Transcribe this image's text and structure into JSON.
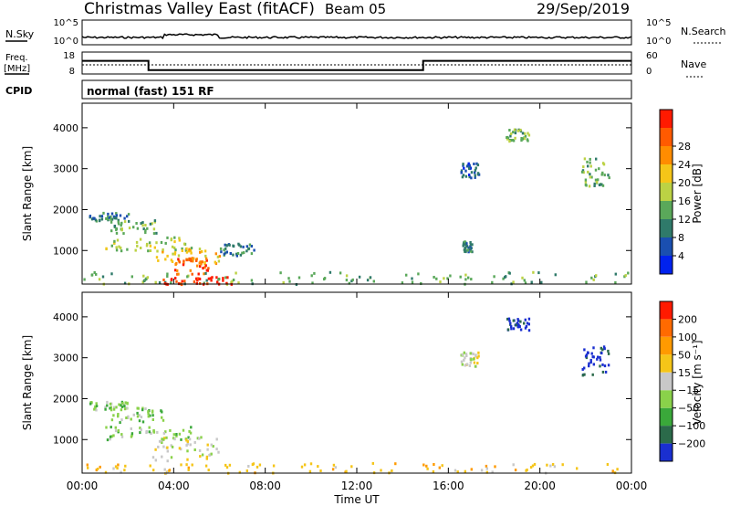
{
  "header": {
    "title": "Christmas Valley East (fitACF)",
    "beam": "Beam 05",
    "date": "29/Sep/2019"
  },
  "top_panels": {
    "nsky": {
      "label": "N.Sky",
      "ticks": [
        "10^5",
        "10^0"
      ],
      "right_label": "N.Search",
      "right_ticks": [
        "10^5",
        "10^0"
      ]
    },
    "freq": {
      "label_line1": "Freq.",
      "label_line2": "[MHz]",
      "ticks": [
        "18",
        "8"
      ],
      "right_label": "Nave",
      "right_ticks": [
        "60",
        "0"
      ]
    },
    "cpid": {
      "label": "CPID",
      "value": "normal (fast) 151 RF"
    }
  },
  "chart_data": [
    {
      "type": "heatmap",
      "panel": "power",
      "ylabel": "Slant Range [km]",
      "y_ticks": [
        1000,
        2000,
        3000,
        4000
      ],
      "ylim": [
        180,
        4600
      ],
      "colorbar": {
        "label": "Power [dB]",
        "ticks": [
          4,
          8,
          12,
          16,
          20,
          24,
          28
        ],
        "colors": [
          "#0022ee",
          "#1a4fb0",
          "#2f7a6a",
          "#5aa85a",
          "#bcd244",
          "#f5c518",
          "#ff8c00",
          "#ff5a00",
          "#ff1a00"
        ]
      },
      "regions": [
        {
          "t0": 0.3,
          "t1": 2.0,
          "r0": 1750,
          "r1": 1950,
          "level": 2
        },
        {
          "t0": 1.2,
          "t1": 3.2,
          "r0": 1450,
          "r1": 1800,
          "level": 3
        },
        {
          "t0": 1.0,
          "t1": 4.8,
          "r0": 1000,
          "r1": 1350,
          "level": 4
        },
        {
          "t0": 3.2,
          "t1": 6.0,
          "r0": 700,
          "r1": 1100,
          "level": 5
        },
        {
          "t0": 4.0,
          "t1": 5.5,
          "r0": 450,
          "r1": 850,
          "level": 7
        },
        {
          "t0": 6.0,
          "t1": 7.5,
          "r0": 900,
          "r1": 1200,
          "level": 2
        },
        {
          "t0": 0.0,
          "t1": 24.0,
          "r0": 200,
          "r1": 500,
          "level": 3
        },
        {
          "t0": 3.5,
          "t1": 6.5,
          "r0": 200,
          "r1": 380,
          "level": 8
        },
        {
          "t0": 16.5,
          "t1": 17.3,
          "r0": 2800,
          "r1": 3200,
          "level": 1
        },
        {
          "t0": 18.5,
          "t1": 19.5,
          "r0": 3700,
          "r1": 4000,
          "level": 3
        },
        {
          "t0": 21.8,
          "t1": 23.0,
          "r0": 2600,
          "r1": 3300,
          "level": 3
        },
        {
          "t0": 16.6,
          "t1": 17.0,
          "r0": 1000,
          "r1": 1250,
          "level": 2
        }
      ]
    },
    {
      "type": "heatmap",
      "panel": "velocity",
      "ylabel": "Slant Range [km]",
      "y_ticks": [
        1000,
        2000,
        3000,
        4000
      ],
      "ylim": [
        180,
        4600
      ],
      "colorbar": {
        "label": "Velocity [m s⁻¹]",
        "ticks": [
          "200",
          "100",
          "50",
          "15",
          "−15",
          "−50",
          "−100",
          "−200"
        ],
        "colors": [
          "#1a2fd0",
          "#2b6a4a",
          "#3aa83a",
          "#8ad24a",
          "#c8c8c8",
          "#f5c518",
          "#ff9a00",
          "#ff6a00",
          "#ff1a00"
        ]
      },
      "regions": [
        {
          "t0": 0.3,
          "t1": 2.0,
          "r0": 1750,
          "r1": 1950,
          "level": 3
        },
        {
          "t0": 1.2,
          "t1": 3.5,
          "r0": 1450,
          "r1": 1800,
          "level": 3
        },
        {
          "t0": 1.0,
          "t1": 4.8,
          "r0": 1000,
          "r1": 1350,
          "level": 3
        },
        {
          "t0": 3.0,
          "t1": 6.0,
          "r0": 500,
          "r1": 1100,
          "level": 4
        },
        {
          "t0": 0.0,
          "t1": 24.0,
          "r0": 200,
          "r1": 450,
          "level": 5
        },
        {
          "t0": 16.5,
          "t1": 17.3,
          "r0": 2800,
          "r1": 3200,
          "level": 4
        },
        {
          "t0": 18.5,
          "t1": 19.5,
          "r0": 3700,
          "r1": 4000,
          "level": 0
        },
        {
          "t0": 21.8,
          "t1": 23.0,
          "r0": 2600,
          "r1": 3300,
          "level": 0
        }
      ]
    }
  ],
  "x_axis": {
    "label": "Time UT",
    "ticks": [
      "00:00",
      "04:00",
      "08:00",
      "12:00",
      "16:00",
      "20:00",
      "00:00"
    ],
    "range_hours": [
      0,
      24
    ]
  },
  "freq_series": {
    "hours": [
      0,
      2.9,
      2.9,
      14.9,
      14.9,
      24
    ],
    "mhz": [
      14,
      14,
      9.8,
      9.8,
      14,
      14
    ]
  }
}
